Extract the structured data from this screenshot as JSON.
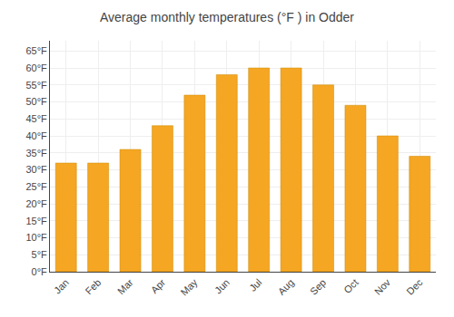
{
  "chart_data": {
    "type": "bar",
    "title": "Average monthly temperatures (°F ) in Odder",
    "categories": [
      "Jan",
      "Feb",
      "Mar",
      "Apr",
      "May",
      "Jun",
      "Jul",
      "Aug",
      "Sep",
      "Oct",
      "Nov",
      "Dec"
    ],
    "values": [
      32,
      32,
      36,
      43,
      52,
      58,
      60,
      60,
      55,
      49,
      40,
      34
    ],
    "color": "#F5A623",
    "ylim": [
      0,
      68
    ],
    "yticks": [
      {
        "value": 0,
        "label": "0°F"
      },
      {
        "value": 5,
        "label": "5°F"
      },
      {
        "value": 10,
        "label": "10°F"
      },
      {
        "value": 15,
        "label": "15°F"
      },
      {
        "value": 20,
        "label": "20°F"
      },
      {
        "value": 25,
        "label": "25°F"
      },
      {
        "value": 30,
        "label": "30°F"
      },
      {
        "value": 35,
        "label": "35°F"
      },
      {
        "value": 40,
        "label": "40°F"
      },
      {
        "value": 45,
        "label": "45°F"
      },
      {
        "value": 50,
        "label": "50°F"
      },
      {
        "value": 55,
        "label": "55°F"
      },
      {
        "value": 60,
        "label": "60°F"
      },
      {
        "value": 65,
        "label": "65°F"
      }
    ],
    "grid": true
  }
}
